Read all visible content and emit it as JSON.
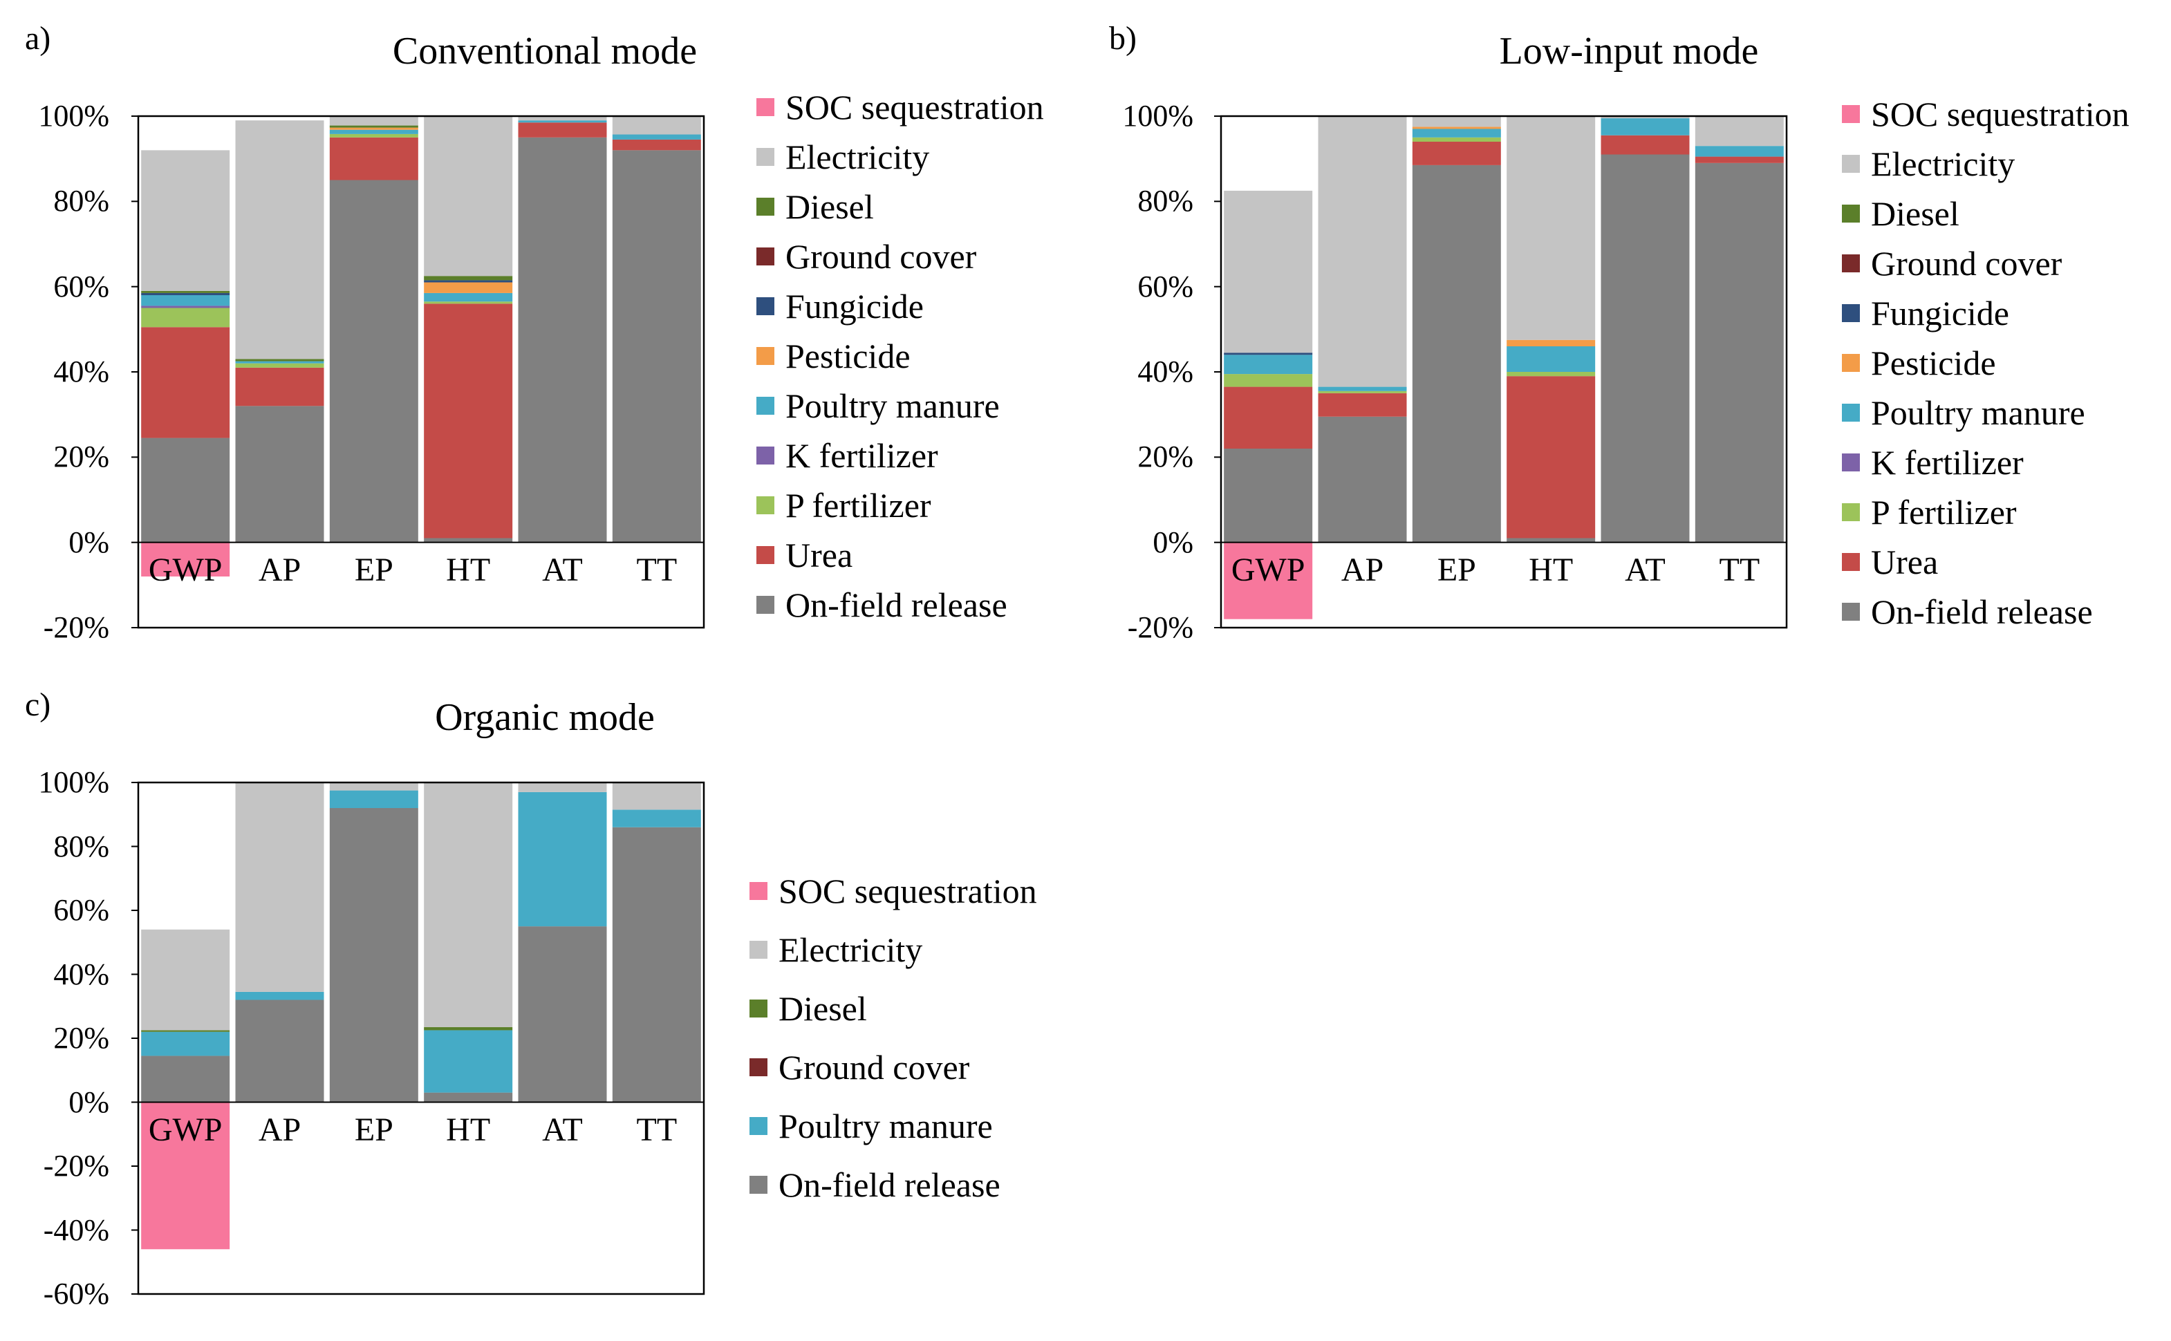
{
  "components": {
    "SOC sequestration": "#f7779c",
    "Electricity": "#c4c4c4",
    "Diesel": "#5b7f2a",
    "Ground cover": "#7a2a2a",
    "Fungicide": "#2e4f7e",
    "Pesticide": "#f39c48",
    "Poultry manure": "#45abc6",
    "K fertilizer": "#7d62a8",
    "P fertilizer": "#9cc35a",
    "Urea": "#c44b48",
    "On-field release": "#808080"
  },
  "chart_data": [
    {
      "type": "bar",
      "stacked": true,
      "panel_label": "a)",
      "title": "Conventional  mode",
      "categories": [
        "GWP",
        "AP",
        "EP",
        "HT",
        "AT",
        "TT"
      ],
      "ylim": [
        -20,
        100
      ],
      "yticks": [
        "-20%",
        "0%",
        "20%",
        "40%",
        "60%",
        "80%",
        "100%"
      ],
      "legend": [
        "SOC sequestration",
        "Electricity",
        "Diesel",
        "Ground cover",
        "Fungicide",
        "Pesticide",
        "Poultry manure",
        "K fertilizer",
        "P fertilizer",
        "Urea",
        "On-field release"
      ],
      "series": [
        {
          "name": "On-field release",
          "values": [
            24.5,
            32,
            85,
            1,
            95,
            92
          ]
        },
        {
          "name": "Urea",
          "values": [
            26,
            9,
            10,
            55,
            3.5,
            2.5
          ]
        },
        {
          "name": "P fertilizer",
          "values": [
            4.5,
            1,
            0.8,
            0.5,
            0,
            0
          ]
        },
        {
          "name": "K fertilizer",
          "values": [
            0.5,
            0,
            0,
            0,
            0,
            0
          ]
        },
        {
          "name": "Poultry manure",
          "values": [
            2.5,
            0.5,
            1,
            2,
            0.5,
            1.2
          ]
        },
        {
          "name": "Pesticide",
          "values": [
            0,
            0,
            0.5,
            2.5,
            0,
            0
          ]
        },
        {
          "name": "Fungicide",
          "values": [
            0.5,
            0,
            0,
            0.5,
            0,
            0
          ]
        },
        {
          "name": "Ground cover",
          "values": [
            0,
            0,
            0,
            0,
            0,
            0
          ]
        },
        {
          "name": "Diesel",
          "values": [
            0.5,
            0.5,
            0.5,
            1,
            0,
            0
          ]
        },
        {
          "name": "Electricity",
          "values": [
            33,
            56,
            2.2,
            37.5,
            1,
            4.3
          ]
        },
        {
          "name": "SOC sequestration",
          "values": [
            -8,
            0,
            0,
            0,
            0,
            0
          ]
        }
      ]
    },
    {
      "type": "bar",
      "stacked": true,
      "panel_label": "b)",
      "title": "Low-input  mode",
      "categories": [
        "GWP",
        "AP",
        "EP",
        "HT",
        "AT",
        "TT"
      ],
      "ylim": [
        -20,
        100
      ],
      "yticks": [
        "-20%",
        "0%",
        "20%",
        "40%",
        "60%",
        "80%",
        "100%"
      ],
      "legend": [
        "SOC sequestration",
        "Electricity",
        "Diesel",
        "Ground cover",
        "Fungicide",
        "Pesticide",
        "Poultry manure",
        "K fertilizer",
        "P fertilizer",
        "Urea",
        "On-field release"
      ],
      "series": [
        {
          "name": "On-field release",
          "values": [
            22,
            29.5,
            88.5,
            1,
            91,
            89
          ]
        },
        {
          "name": "Urea",
          "values": [
            14.5,
            5.5,
            5.5,
            38,
            4.5,
            1.5
          ]
        },
        {
          "name": "P fertilizer",
          "values": [
            3,
            0.5,
            1,
            1,
            0,
            0
          ]
        },
        {
          "name": "K fertilizer",
          "values": [
            0,
            0,
            0,
            0,
            0,
            0
          ]
        },
        {
          "name": "Poultry manure",
          "values": [
            4.5,
            1,
            2,
            6,
            4,
            2.5
          ]
        },
        {
          "name": "Pesticide",
          "values": [
            0,
            0,
            0.5,
            1.5,
            0,
            0
          ]
        },
        {
          "name": "Fungicide",
          "values": [
            0.5,
            0,
            0,
            0,
            0,
            0
          ]
        },
        {
          "name": "Ground cover",
          "values": [
            0,
            0,
            0,
            0,
            0,
            0
          ]
        },
        {
          "name": "Diesel",
          "values": [
            0,
            0,
            0,
            0,
            0,
            0
          ]
        },
        {
          "name": "Electricity",
          "values": [
            38,
            63.5,
            2.5,
            52.5,
            0.5,
            7
          ]
        },
        {
          "name": "SOC sequestration",
          "values": [
            -18,
            0,
            0,
            0,
            0,
            0
          ]
        }
      ]
    },
    {
      "type": "bar",
      "stacked": true,
      "panel_label": "c)",
      "title": "Organic  mode",
      "categories": [
        "GWP",
        "AP",
        "EP",
        "HT",
        "AT",
        "TT"
      ],
      "ylim": [
        -60,
        100
      ],
      "yticks": [
        "-60%",
        "-40%",
        "-20%",
        "0%",
        "20%",
        "40%",
        "60%",
        "80%",
        "100%"
      ],
      "legend": [
        "SOC sequestration",
        "Electricity",
        "Diesel",
        "Ground cover",
        "Poultry manure",
        "On-field release"
      ],
      "series": [
        {
          "name": "On-field release",
          "values": [
            14.5,
            32,
            92,
            3,
            55,
            86
          ]
        },
        {
          "name": "Poultry manure",
          "values": [
            7.5,
            2.5,
            5.5,
            19.5,
            42,
            5.5
          ]
        },
        {
          "name": "Ground cover",
          "values": [
            0,
            0,
            0,
            0,
            0,
            0
          ]
        },
        {
          "name": "Diesel",
          "values": [
            0.5,
            0,
            0,
            1,
            0,
            0
          ]
        },
        {
          "name": "Electricity",
          "values": [
            31.5,
            65.5,
            2.5,
            76.5,
            3,
            8.5
          ]
        },
        {
          "name": "SOC sequestration",
          "values": [
            -46,
            0,
            0,
            0,
            0,
            0
          ]
        }
      ]
    }
  ]
}
